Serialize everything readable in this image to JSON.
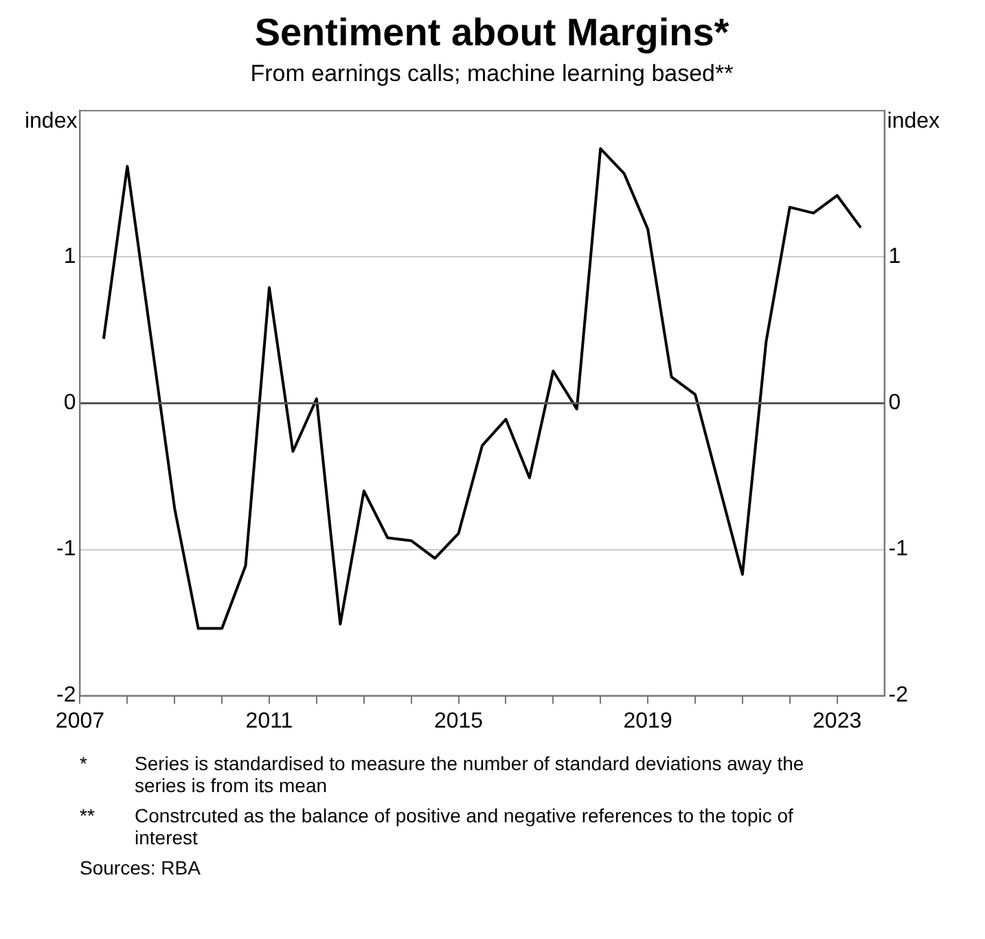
{
  "chart_data": {
    "type": "line",
    "title": "Sentiment about Margins*",
    "subtitle": "From earnings calls; machine learning based**",
    "ylabel": "index",
    "y2label": "index",
    "x": [
      2007.5,
      2008.0,
      2009.0,
      2009.5,
      2010.0,
      2010.5,
      2011.0,
      2011.5,
      2012.0,
      2012.5,
      2013.0,
      2013.5,
      2014.0,
      2014.5,
      2015.0,
      2015.5,
      2016.0,
      2016.5,
      2017.0,
      2017.5,
      2018.0,
      2018.5,
      2019.0,
      2019.5,
      2020.0,
      2021.0,
      2021.5,
      2022.0,
      2022.5,
      2023.0,
      2023.5
    ],
    "series": [
      {
        "color": "#000000",
        "values": [
          0.44,
          1.62,
          -0.72,
          -1.54,
          -1.54,
          -1.11,
          0.79,
          -0.33,
          0.03,
          -1.51,
          -0.6,
          -0.92,
          -0.94,
          -1.06,
          -0.89,
          -0.29,
          -0.11,
          -0.51,
          0.22,
          -0.04,
          1.74,
          1.57,
          1.19,
          0.18,
          0.06,
          -1.17,
          0.42,
          1.34,
          1.3,
          1.42,
          1.2
        ]
      }
    ],
    "xlim": [
      2007,
      2024
    ],
    "xticks": [
      2007,
      {
        "value": 2008,
        "label": null
      },
      {
        "value": 2009,
        "label": null
      },
      {
        "value": 2010,
        "label": null
      },
      2011,
      {
        "value": 2012,
        "label": null
      },
      {
        "value": 2013,
        "label": null
      },
      {
        "value": 2014,
        "label": null
      },
      2015,
      {
        "value": 2016,
        "label": null
      },
      {
        "value": 2017,
        "label": null
      },
      {
        "value": 2018,
        "label": null
      },
      2019,
      {
        "value": 2020,
        "label": null
      },
      {
        "value": 2021,
        "label": null
      },
      {
        "value": 2022,
        "label": null
      },
      2023
    ],
    "ylim": [
      -2,
      2
    ],
    "yticks": [
      -2,
      -1,
      0,
      1
    ],
    "y2lim": [
      -2,
      2
    ],
    "y2ticks": [
      -2,
      -1,
      0,
      1
    ],
    "grid": "y",
    "marker": "none",
    "line_style": "solid",
    "legend": false,
    "ref_lines": [
      {
        "axis": "y",
        "value": 0,
        "color": "#555555"
      }
    ],
    "annotations": [
      "*\tSeries is standardised to measure the number of standard deviations away the series is from its mean",
      "**\tConstrcuted as the balance of positive and negative references to the topic of interest",
      "Sources: RBA"
    ]
  }
}
